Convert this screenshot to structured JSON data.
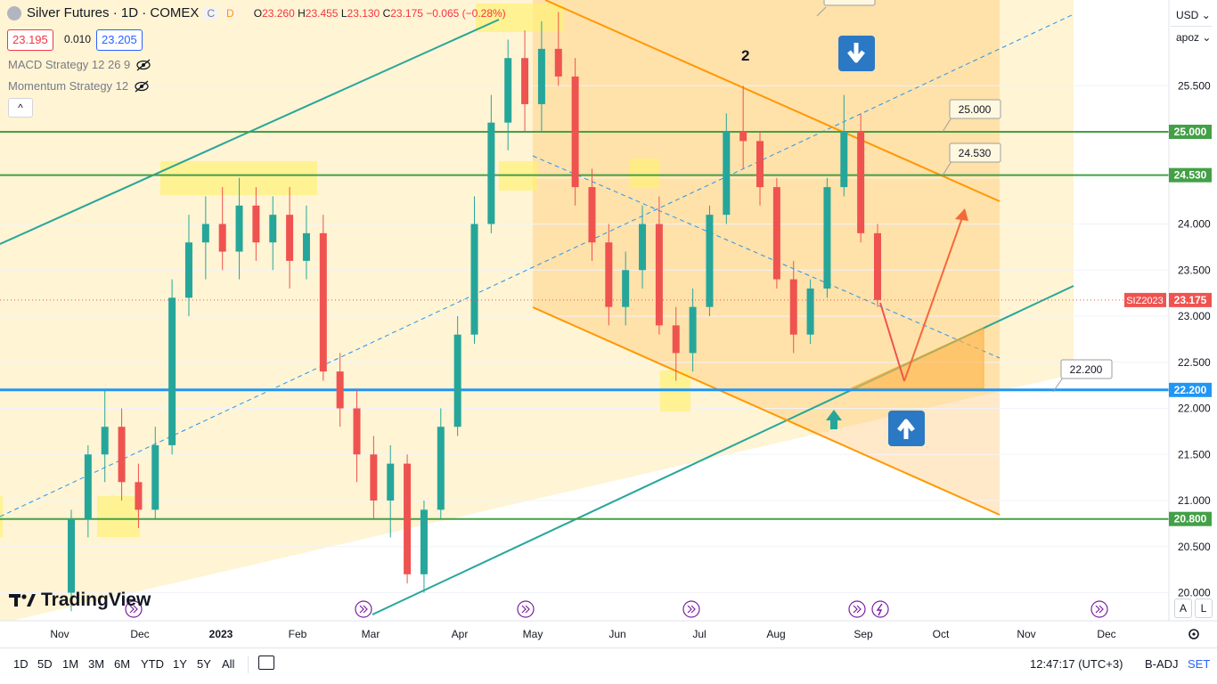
{
  "header": {
    "symbol_title": "Silver Futures · 1D · COMEX",
    "compare_label": "C",
    "interval_badge": "D",
    "o_label": "O",
    "open": "23.260",
    "h_label": "H",
    "high": "23.455",
    "l_label": "L",
    "low": "23.130",
    "c_label": "C",
    "close": "23.175",
    "change": "−0.065 (−0.28%)"
  },
  "trade": {
    "sell": "23.195",
    "spread": "0.010",
    "buy": "23.205"
  },
  "indicators": [
    "MACD Strategy 12 26 9",
    "Momentum Strategy 12"
  ],
  "collapse_label": "^",
  "logo_text": "TradingView",
  "right_toolbar": {
    "currency": "USD",
    "unit": "apoz",
    "auto_a": "A",
    "log_l": "L"
  },
  "bottom": {
    "ranges": [
      "1D",
      "5D",
      "1M",
      "3M",
      "6M",
      "YTD",
      "1Y",
      "5Y",
      "All"
    ],
    "time": "12:47:17 (UTC+3)",
    "adj": "B-ADJ",
    "session": "SET"
  },
  "colors": {
    "up": "#26a69a",
    "down": "#ef5350",
    "green_line": "#43a047",
    "blue_line": "#2196f3",
    "orange": "#ff9800",
    "zone": "#ffe082",
    "highlight": "#fff176",
    "arrow_box": "#2b78c5"
  },
  "chart_data": {
    "type": "candlestick",
    "symbol": "SIZ2023",
    "last_price": 23.175,
    "x_ticks": [
      "Nov",
      "Dec",
      "2023",
      "Feb",
      "Mar",
      "Apr",
      "May",
      "Jun",
      "Jul",
      "Aug",
      "Sep",
      "Oct",
      "Nov",
      "Dec"
    ],
    "y_ticks": [
      20.0,
      20.5,
      21.0,
      21.5,
      22.0,
      22.5,
      23.0,
      23.5,
      24.0,
      24.5,
      25.0,
      25.5
    ],
    "ylim": [
      19.9,
      26.5
    ],
    "candles": [
      {
        "t": "Nov",
        "o": 20.0,
        "h": 20.9,
        "l": 19.8,
        "c": 20.8
      },
      {
        "t": "Nov",
        "o": 20.8,
        "h": 21.6,
        "l": 20.6,
        "c": 21.5
      },
      {
        "t": "Nov",
        "o": 21.5,
        "h": 22.2,
        "l": 21.2,
        "c": 21.8
      },
      {
        "t": "Nov",
        "o": 21.8,
        "h": 22.0,
        "l": 21.0,
        "c": 21.2
      },
      {
        "t": "Nov",
        "o": 21.2,
        "h": 21.4,
        "l": 20.7,
        "c": 20.9
      },
      {
        "t": "Dec",
        "o": 20.9,
        "h": 21.8,
        "l": 20.8,
        "c": 21.6
      },
      {
        "t": "Dec",
        "o": 21.6,
        "h": 23.4,
        "l": 21.5,
        "c": 23.2
      },
      {
        "t": "Dec",
        "o": 23.2,
        "h": 24.1,
        "l": 23.0,
        "c": 23.8
      },
      {
        "t": "Dec",
        "o": 23.8,
        "h": 24.3,
        "l": 23.4,
        "c": 24.0
      },
      {
        "t": "Dec",
        "o": 24.0,
        "h": 24.4,
        "l": 23.5,
        "c": 23.7
      },
      {
        "t": "2023",
        "o": 23.7,
        "h": 24.5,
        "l": 23.4,
        "c": 24.2
      },
      {
        "t": "2023",
        "o": 24.2,
        "h": 24.4,
        "l": 23.6,
        "c": 23.8
      },
      {
        "t": "2023",
        "o": 23.8,
        "h": 24.3,
        "l": 23.5,
        "c": 24.1
      },
      {
        "t": "2023",
        "o": 24.1,
        "h": 24.4,
        "l": 23.3,
        "c": 23.6
      },
      {
        "t": "Feb",
        "o": 23.6,
        "h": 24.2,
        "l": 23.4,
        "c": 23.9
      },
      {
        "t": "Feb",
        "o": 23.9,
        "h": 24.1,
        "l": 22.3,
        "c": 22.4
      },
      {
        "t": "Feb",
        "o": 22.4,
        "h": 22.6,
        "l": 21.8,
        "c": 22.0
      },
      {
        "t": "Feb",
        "o": 22.0,
        "h": 22.2,
        "l": 21.2,
        "c": 21.5
      },
      {
        "t": "Mar",
        "o": 21.5,
        "h": 21.7,
        "l": 20.8,
        "c": 21.0
      },
      {
        "t": "Mar",
        "o": 21.0,
        "h": 21.6,
        "l": 20.6,
        "c": 21.4
      },
      {
        "t": "Mar",
        "o": 21.4,
        "h": 21.5,
        "l": 20.1,
        "c": 20.2
      },
      {
        "t": "Mar",
        "o": 20.2,
        "h": 21.0,
        "l": 20.0,
        "c": 20.9
      },
      {
        "t": "Mar",
        "o": 20.9,
        "h": 22.0,
        "l": 20.8,
        "c": 21.8
      },
      {
        "t": "Apr",
        "o": 21.8,
        "h": 23.0,
        "l": 21.7,
        "c": 22.8
      },
      {
        "t": "Apr",
        "o": 22.8,
        "h": 24.3,
        "l": 22.7,
        "c": 24.0
      },
      {
        "t": "Apr",
        "o": 24.0,
        "h": 25.4,
        "l": 23.9,
        "c": 25.1
      },
      {
        "t": "Apr",
        "o": 25.1,
        "h": 26.0,
        "l": 24.8,
        "c": 25.8
      },
      {
        "t": "Apr",
        "o": 25.8,
        "h": 26.1,
        "l": 25.0,
        "c": 25.3
      },
      {
        "t": "May",
        "o": 25.3,
        "h": 26.2,
        "l": 25.0,
        "c": 25.9
      },
      {
        "t": "May",
        "o": 25.9,
        "h": 26.3,
        "l": 25.5,
        "c": 25.6
      },
      {
        "t": "May",
        "o": 25.6,
        "h": 25.8,
        "l": 24.2,
        "c": 24.4
      },
      {
        "t": "May",
        "o": 24.4,
        "h": 24.6,
        "l": 23.6,
        "c": 23.8
      },
      {
        "t": "Jun",
        "o": 23.8,
        "h": 24.0,
        "l": 22.9,
        "c": 23.1
      },
      {
        "t": "Jun",
        "o": 23.1,
        "h": 23.7,
        "l": 22.9,
        "c": 23.5
      },
      {
        "t": "Jun",
        "o": 23.5,
        "h": 24.2,
        "l": 23.3,
        "c": 24.0
      },
      {
        "t": "Jun",
        "o": 24.0,
        "h": 24.3,
        "l": 22.8,
        "c": 22.9
      },
      {
        "t": "Jul",
        "o": 22.9,
        "h": 23.1,
        "l": 22.3,
        "c": 22.6
      },
      {
        "t": "Jul",
        "o": 22.6,
        "h": 23.3,
        "l": 22.4,
        "c": 23.1
      },
      {
        "t": "Jul",
        "o": 23.1,
        "h": 24.2,
        "l": 23.0,
        "c": 24.1
      },
      {
        "t": "Jul",
        "o": 24.1,
        "h": 25.2,
        "l": 24.0,
        "c": 25.0
      },
      {
        "t": "Jul",
        "o": 25.0,
        "h": 25.5,
        "l": 24.6,
        "c": 24.9
      },
      {
        "t": "Aug",
        "o": 24.9,
        "h": 25.0,
        "l": 24.2,
        "c": 24.4
      },
      {
        "t": "Aug",
        "o": 24.4,
        "h": 24.5,
        "l": 23.3,
        "c": 23.4
      },
      {
        "t": "Aug",
        "o": 23.4,
        "h": 23.6,
        "l": 22.6,
        "c": 22.8
      },
      {
        "t": "Aug",
        "o": 22.8,
        "h": 23.4,
        "l": 22.7,
        "c": 23.3
      },
      {
        "t": "Aug",
        "o": 23.3,
        "h": 24.5,
        "l": 23.2,
        "c": 24.4
      },
      {
        "t": "Sep",
        "o": 24.4,
        "h": 25.4,
        "l": 24.3,
        "c": 25.0
      },
      {
        "t": "Sep",
        "o": 25.0,
        "h": 25.2,
        "l": 23.8,
        "c": 23.9
      },
      {
        "t": "Sep",
        "o": 23.9,
        "h": 24.0,
        "l": 23.1,
        "c": 23.175
      }
    ],
    "horizontal_levels": [
      {
        "value": 25.0,
        "label": "25.000"
      },
      {
        "value": 24.53,
        "label": "24.530"
      },
      {
        "value": 22.2,
        "label": "22.200"
      },
      {
        "value": 20.8,
        "label": "20.800"
      }
    ],
    "annotations": {
      "wave_label": "2",
      "callouts": [
        "25.000",
        "24.530",
        "22.200"
      ]
    }
  }
}
